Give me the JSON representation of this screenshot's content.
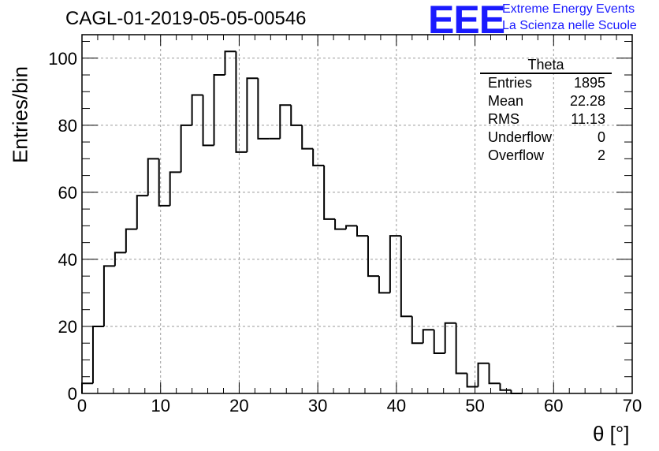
{
  "title": "CAGL-01-2019-05-05-00546",
  "logo": {
    "mark": "EEE",
    "line1": "Extreme Energy Events",
    "line2": "La Scienza nelle Scuole",
    "color": "#1a1aff"
  },
  "stats": {
    "name": "Theta",
    "rows": [
      {
        "label": "Entries",
        "value": "1895"
      },
      {
        "label": "Mean",
        "value": "22.28"
      },
      {
        "label": "RMS",
        "value": "11.13"
      },
      {
        "label": "Underflow",
        "value": "0"
      },
      {
        "label": "Overflow",
        "value": "2"
      }
    ]
  },
  "chart_data": {
    "type": "histogram",
    "xlabel": "θ [°]",
    "ylabel": "Entries/bin",
    "xlim": [
      0,
      70
    ],
    "ylim": [
      0,
      107
    ],
    "xticks": [
      0,
      10,
      20,
      30,
      40,
      50,
      60,
      70
    ],
    "yticks": [
      0,
      20,
      40,
      60,
      80,
      100
    ],
    "grid": true,
    "bin_width": 1.4,
    "bin_start": 0,
    "values": [
      3,
      20,
      38,
      42,
      49,
      59,
      70,
      56,
      66,
      80,
      89,
      74,
      95,
      102,
      72,
      94,
      76,
      76,
      86,
      80,
      73,
      68,
      52,
      49,
      50,
      47,
      35,
      30,
      47,
      23,
      15,
      19,
      12,
      21,
      6,
      2,
      9,
      3,
      1,
      0
    ]
  }
}
